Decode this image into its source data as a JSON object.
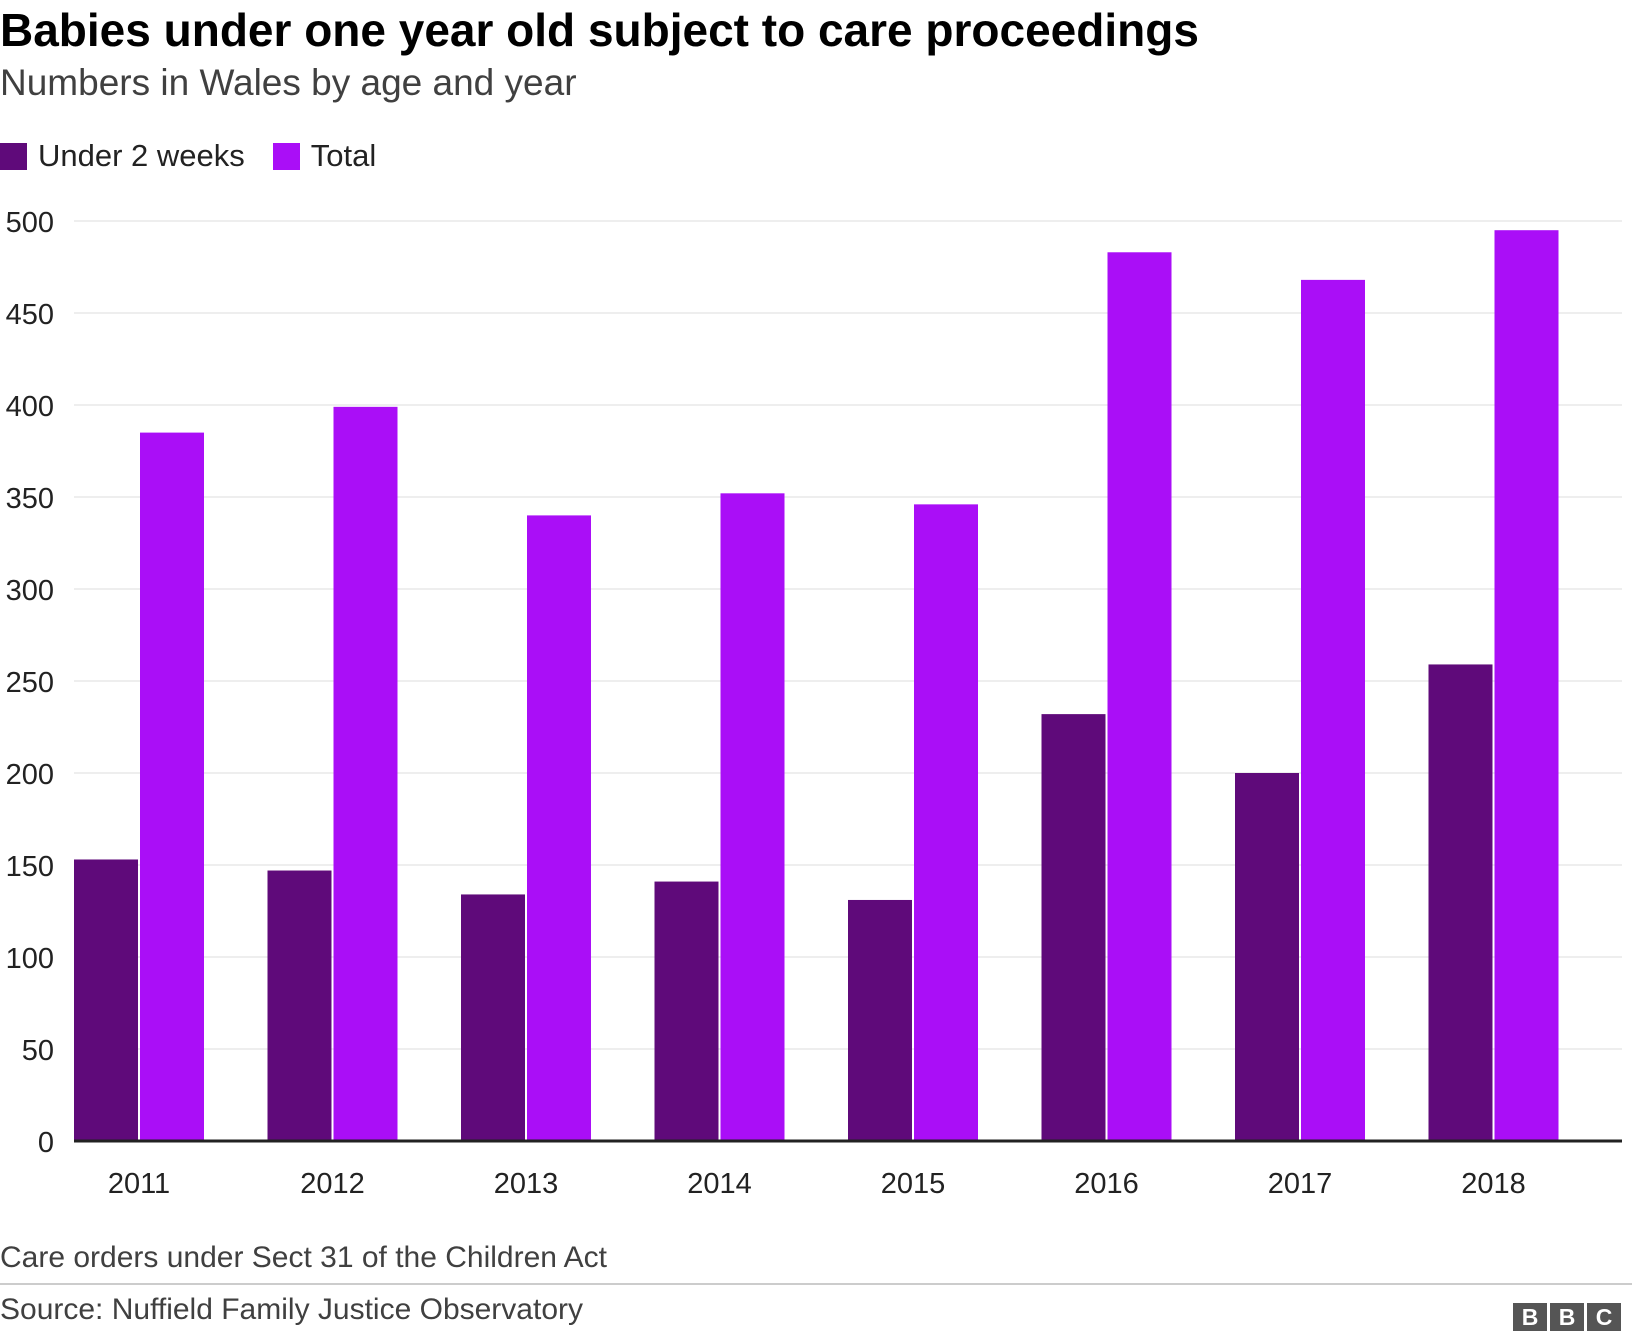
{
  "title": "Babies under one year old subject to care proceedings",
  "subtitle": "Numbers in Wales by age and year",
  "note": "Care orders under Sect 31 of the Children Act",
  "source": "Source: Nuffield Family Justice Observatory",
  "logo": {
    "letters": [
      "B",
      "B",
      "C"
    ]
  },
  "legend": [
    {
      "label": "Under 2 weeks",
      "color": "#5f0a7a"
    },
    {
      "label": "Total",
      "color": "#aa0ef7"
    }
  ],
  "chart_data": {
    "type": "bar",
    "title": "Babies under one year old subject to care proceedings",
    "subtitle": "Numbers in Wales by age and year",
    "categories": [
      "2011",
      "2012",
      "2013",
      "2014",
      "2015",
      "2016",
      "2017",
      "2018"
    ],
    "series": [
      {
        "name": "Under 2 weeks",
        "color": "#5f0a7a",
        "values": [
          153,
          147,
          134,
          141,
          131,
          232,
          200,
          259
        ]
      },
      {
        "name": "Total",
        "color": "#aa0ef7",
        "values": [
          385,
          399,
          340,
          352,
          346,
          483,
          468,
          495
        ]
      }
    ],
    "ylim": [
      0,
      500
    ],
    "yticks": [
      0,
      50,
      100,
      150,
      200,
      250,
      300,
      350,
      400,
      450,
      500
    ],
    "grid": true,
    "legend_position": "top-left"
  }
}
